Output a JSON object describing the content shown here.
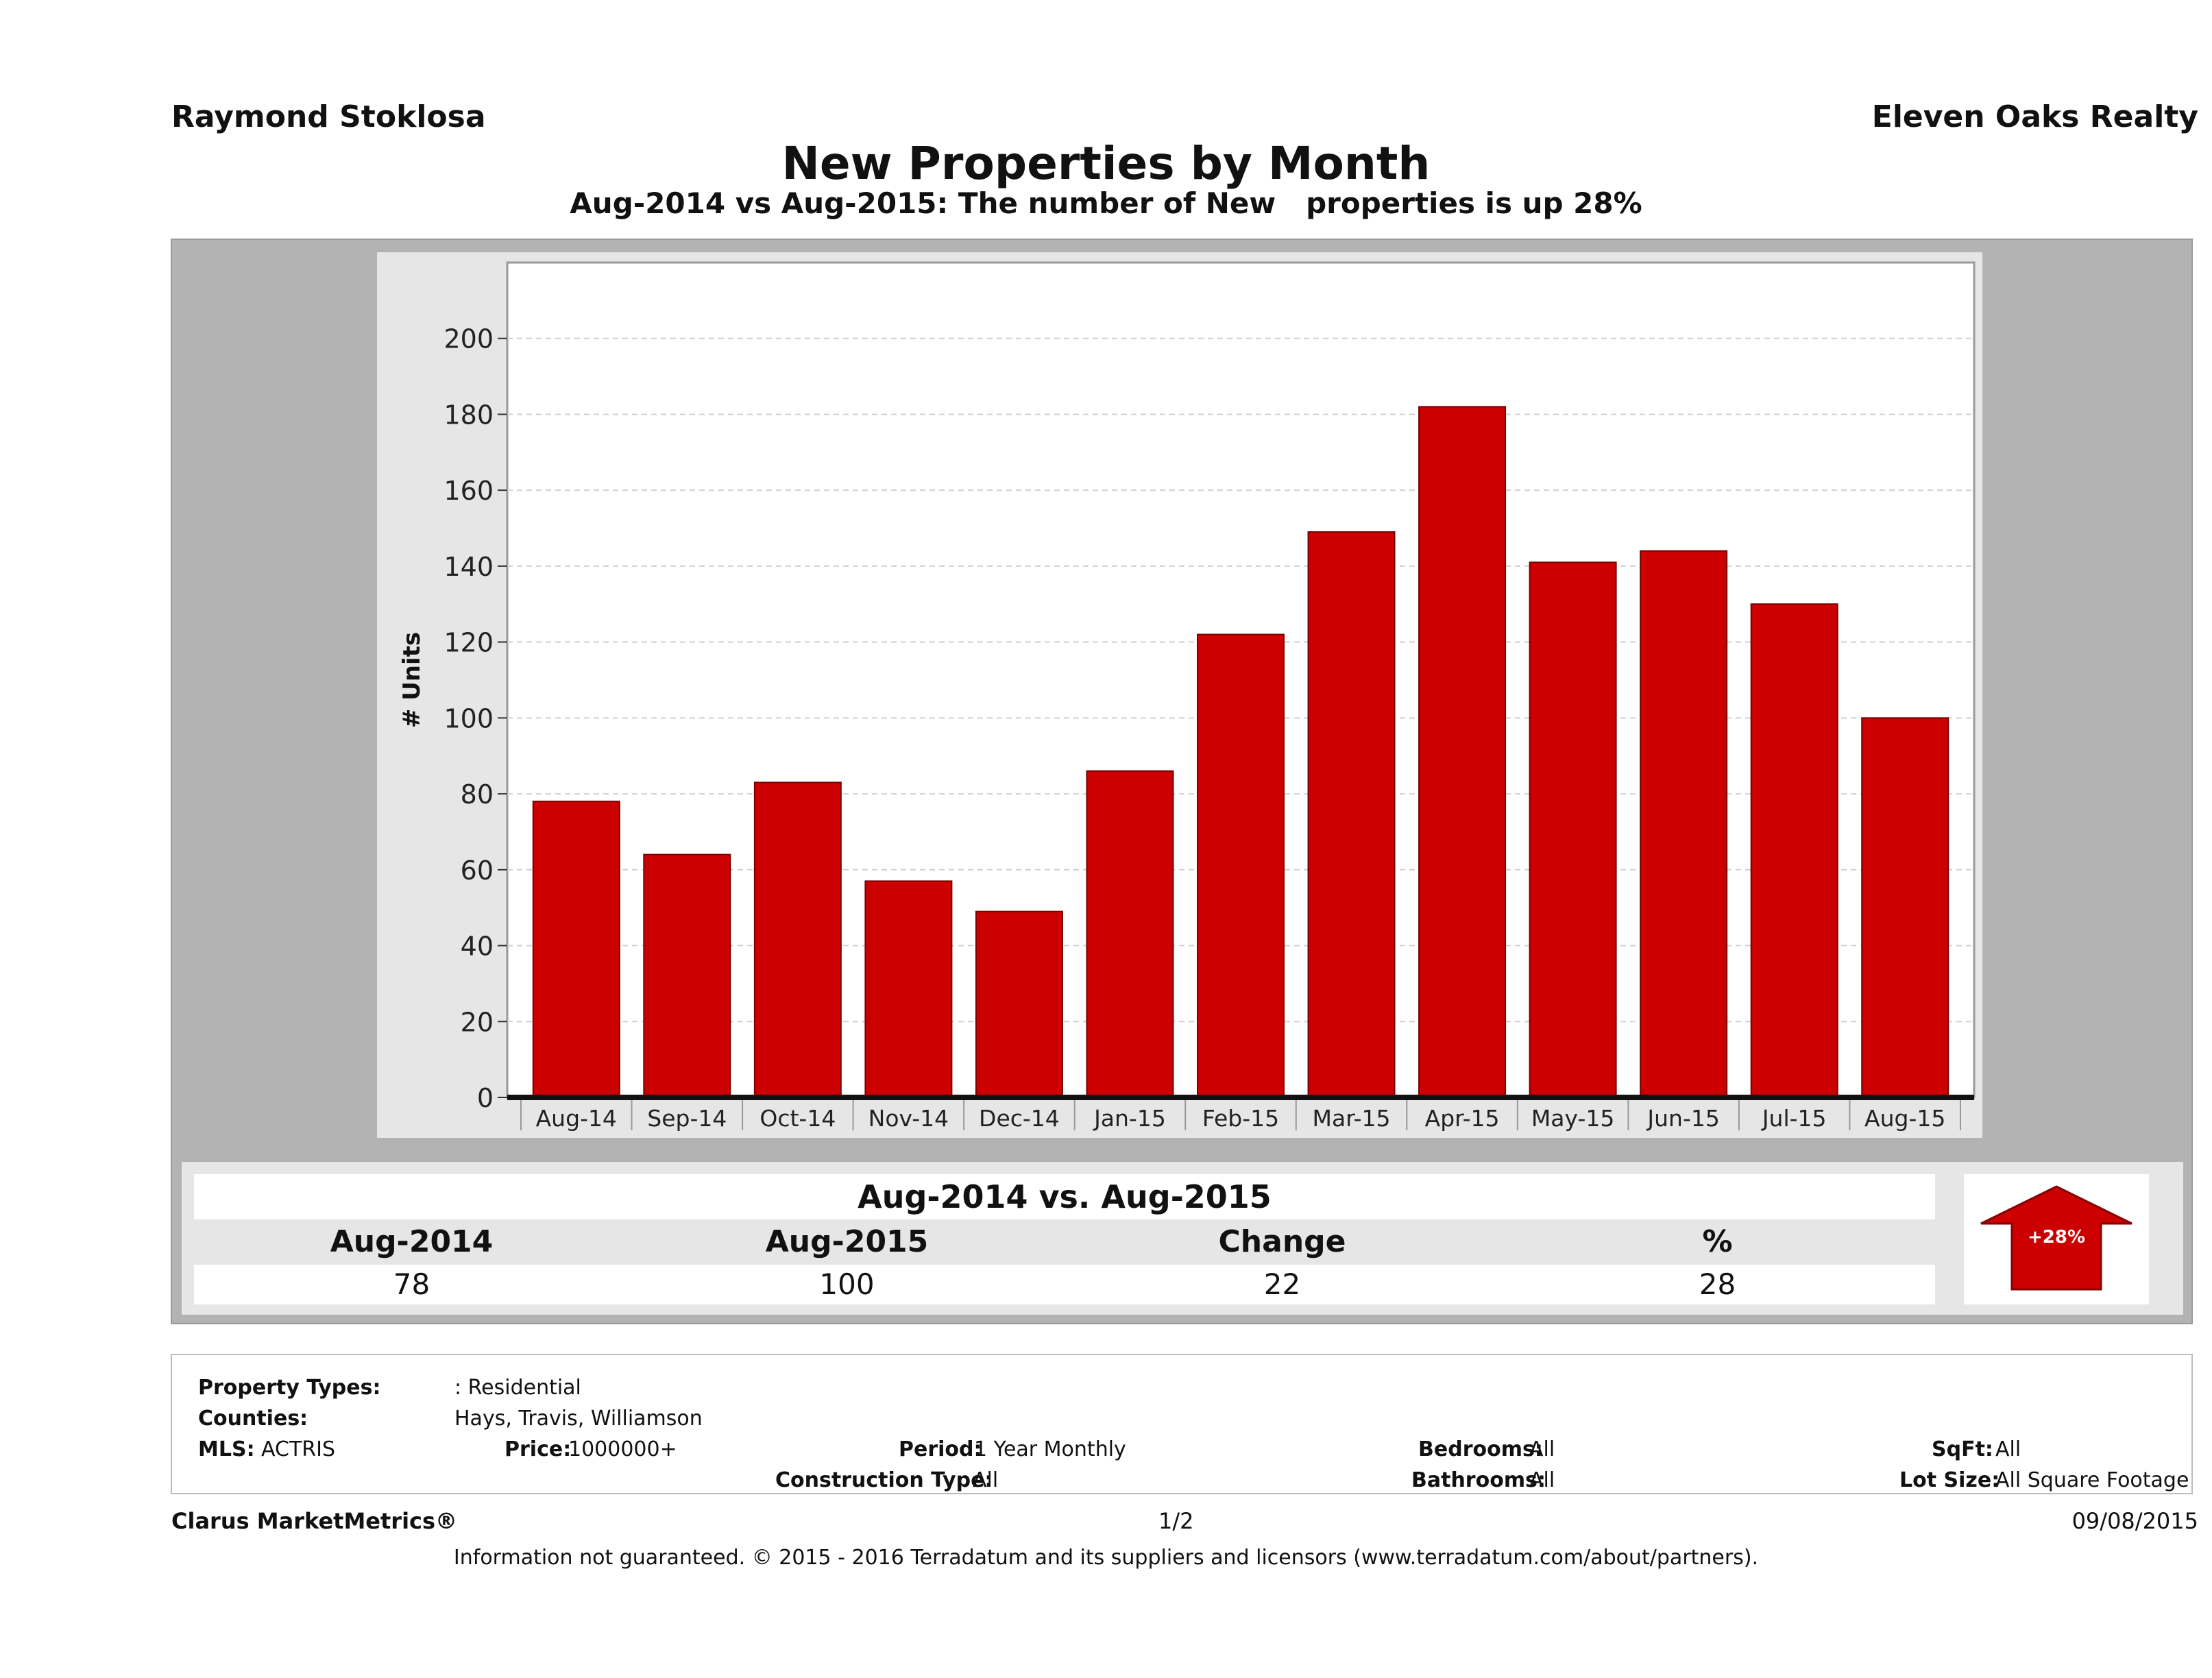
{
  "header": {
    "agent": "Raymond Stoklosa",
    "company": "Eleven Oaks Realty",
    "title": "New Properties by Month",
    "subtitle": "Aug-2014 vs Aug-2015: The number of New   properties is up 28%"
  },
  "chart_data": {
    "type": "bar",
    "title": "New Properties by Month",
    "xlabel": "",
    "ylabel": "# Units",
    "categories": [
      "Aug-14",
      "Sep-14",
      "Oct-14",
      "Nov-14",
      "Dec-14",
      "Jan-15",
      "Feb-15",
      "Mar-15",
      "Apr-15",
      "May-15",
      "Jun-15",
      "Jul-15",
      "Aug-15"
    ],
    "values": [
      78,
      64,
      83,
      57,
      49,
      86,
      122,
      149,
      182,
      141,
      144,
      130,
      100
    ],
    "ylim": [
      0,
      220
    ],
    "yticks": [
      0,
      20,
      40,
      60,
      80,
      100,
      120,
      140,
      160,
      180,
      200
    ],
    "grid": true,
    "bar_color": "#cc0000"
  },
  "summary": {
    "heading": "Aug-2014 vs. Aug-2015",
    "columns": [
      "Aug-2014",
      "Aug-2015",
      "Change",
      "%"
    ],
    "values": [
      "78",
      "100",
      "22",
      "28"
    ],
    "badge": "+28%",
    "badge_color": "#cc0000"
  },
  "criteria": {
    "property_types_label": "Property Types:",
    "property_types_value": ": Residential",
    "counties_label": "Counties:",
    "counties_value": "Hays, Travis, Williamson",
    "mls_label": "MLS:",
    "mls_value": "ACTRIS",
    "price_label": "Price:",
    "price_value": "1000000+",
    "period_label": "Period:",
    "period_value": "1 Year Monthly",
    "construction_label": "Construction Type:",
    "construction_value": "All",
    "bedrooms_label": "Bedrooms:",
    "bedrooms_value": "All",
    "bathrooms_label": "Bathrooms:",
    "bathrooms_value": "All",
    "sqft_label": "SqFt:",
    "sqft_value": "All",
    "lotsize_label": "Lot Size:",
    "lotsize_value": "All Square Footage"
  },
  "footer": {
    "brand": "Clarus MarketMetrics®",
    "page": "1/2",
    "date": "09/08/2015",
    "disclaimer": "Information not guaranteed. © 2015 - 2016 Terradatum and its suppliers and licensors (www.terradatum.com/about/partners)."
  }
}
